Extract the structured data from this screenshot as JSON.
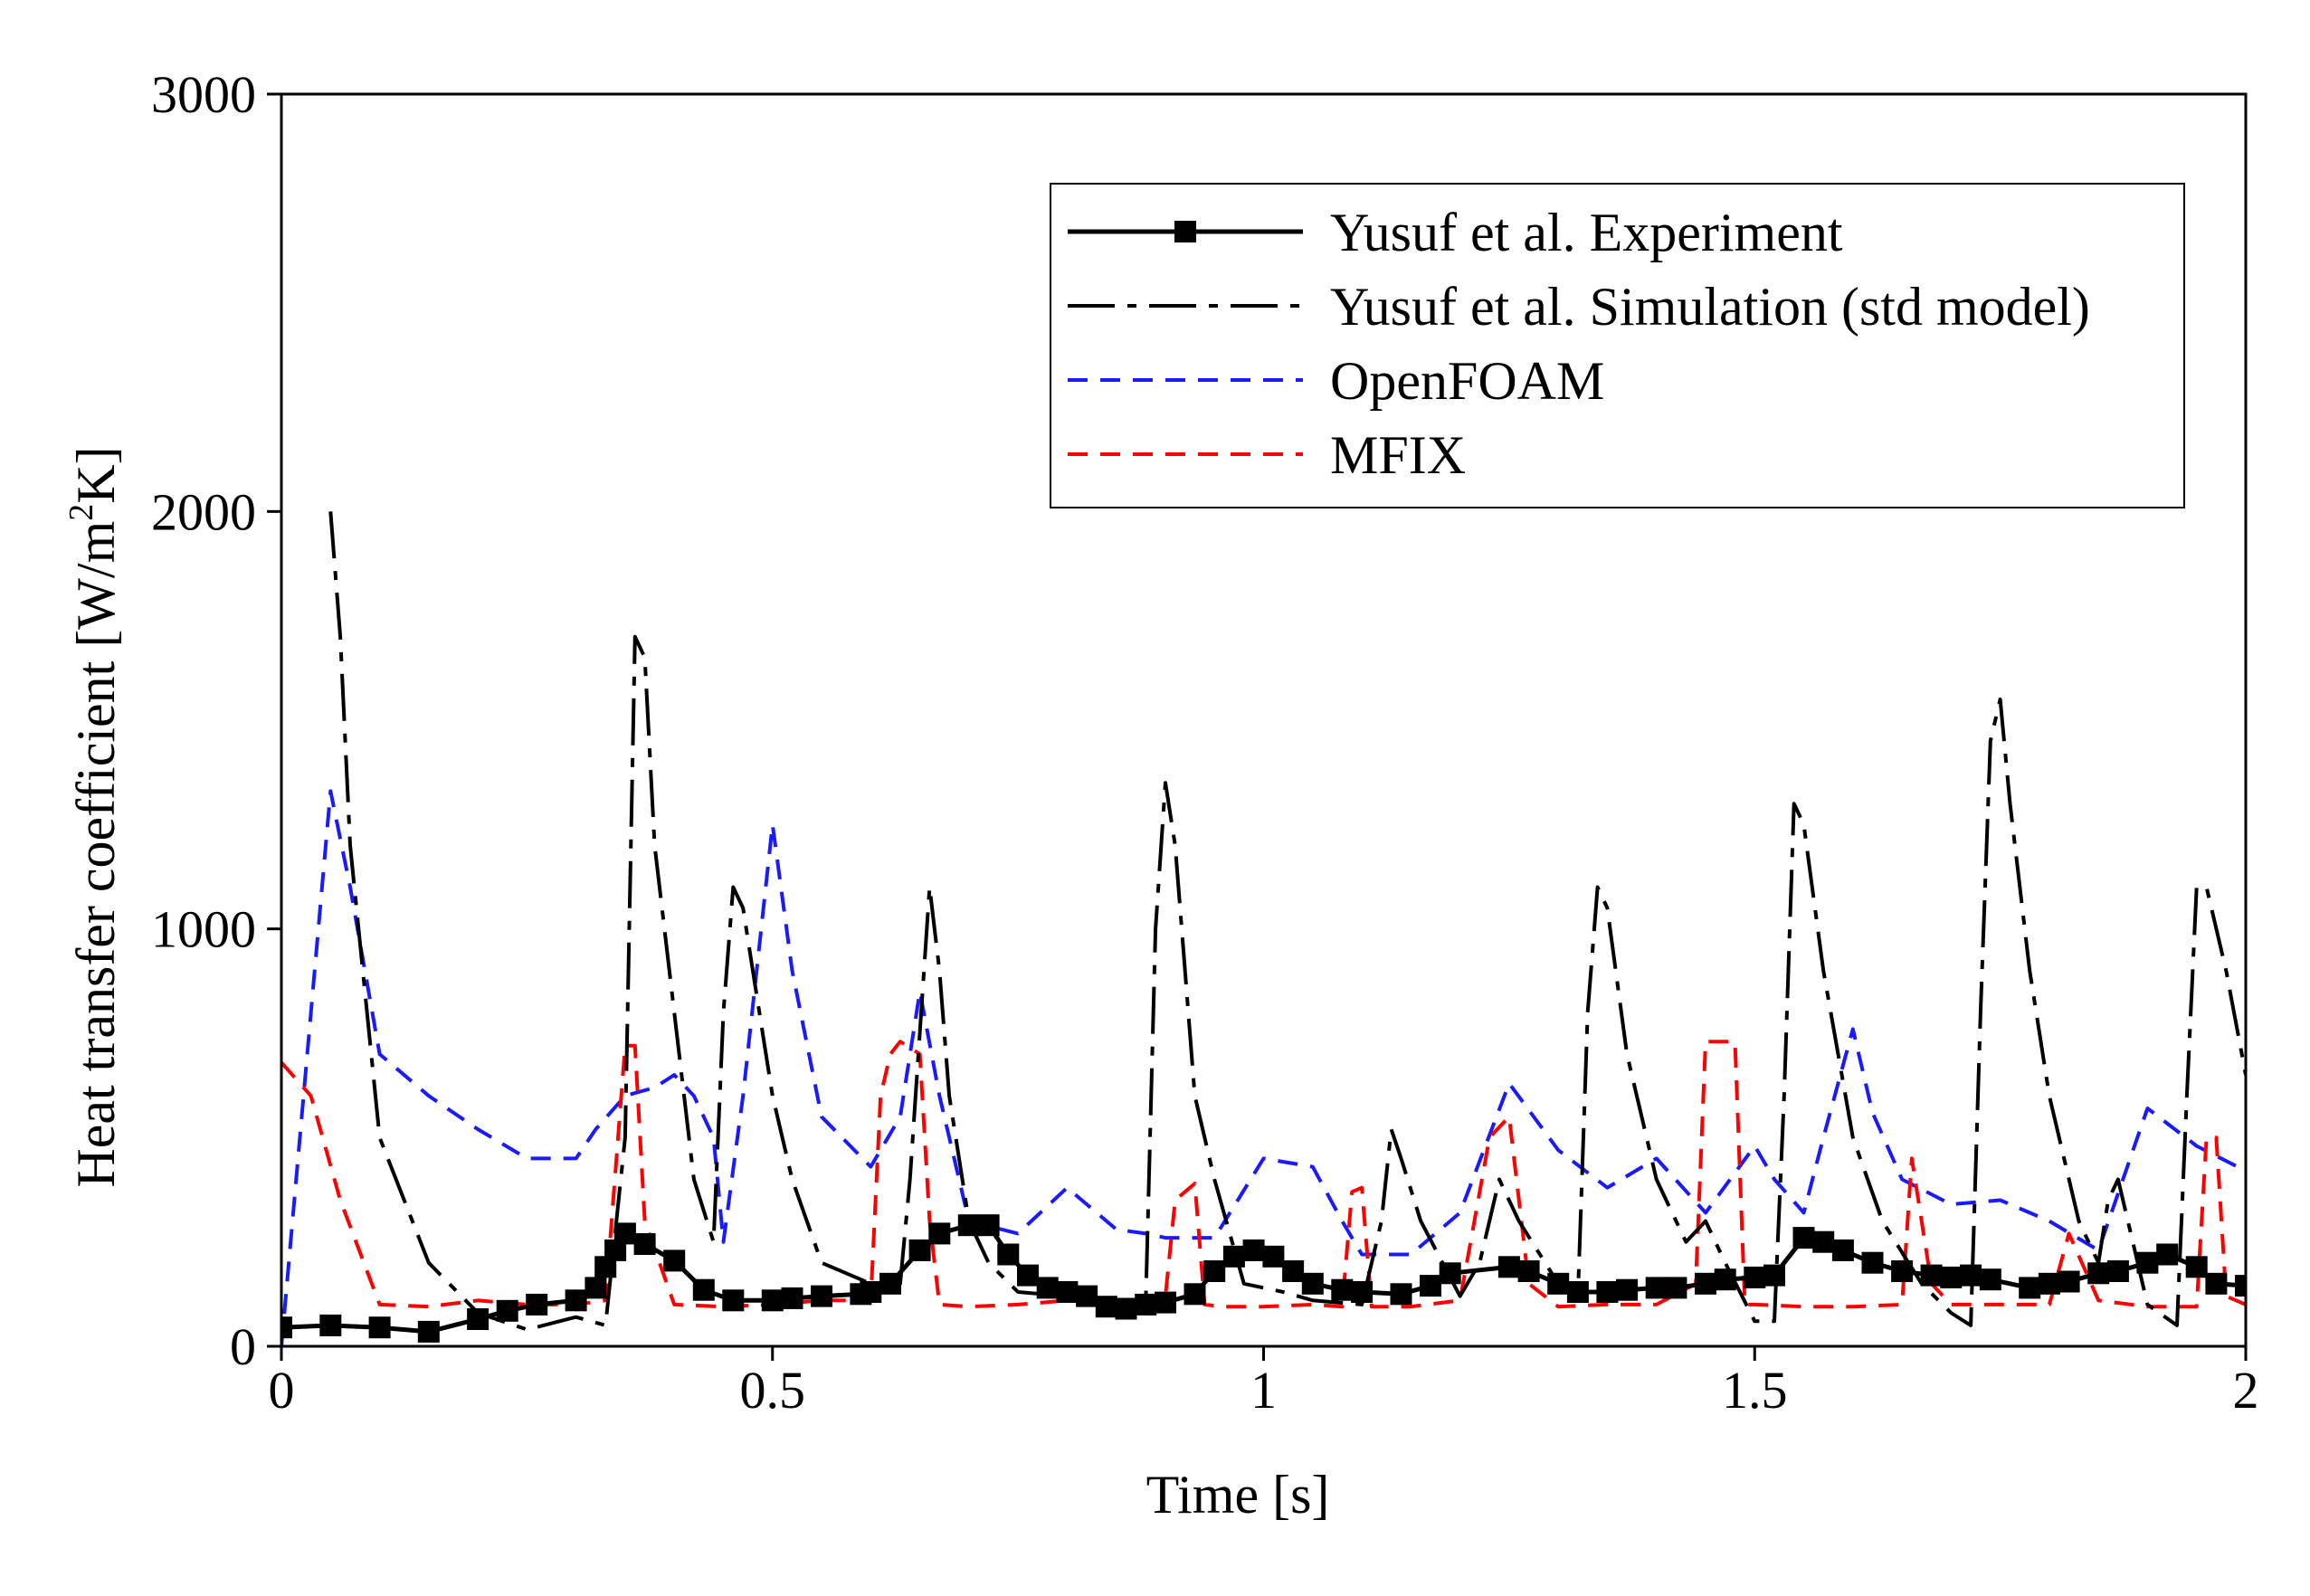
{
  "chart_data": {
    "type": "line",
    "title": "",
    "xlabel": "Time [s]",
    "ylabel": "Heat transfer coefficient [W/m²K]",
    "ylabel_parts": {
      "before": "Heat transfer coefficient [W/m",
      "sup": "2",
      "after": "K]"
    },
    "xlim": [
      0,
      2
    ],
    "ylim": [
      0,
      3000
    ],
    "xticks": [
      0,
      0.5,
      1,
      1.5,
      2
    ],
    "xtick_labels": [
      "0",
      "0.5",
      "1",
      "1.5",
      "2"
    ],
    "yticks": [
      0,
      1000,
      2000,
      3000
    ],
    "ytick_labels": [
      "0",
      "1000",
      "2000",
      "3000"
    ],
    "grid": false,
    "legend_position": "top-right",
    "series": [
      {
        "name": "Yusuf et al. Experiment",
        "color": "#000000",
        "style": "solid-square-markers",
        "x": [
          0,
          0.05,
          0.1,
          0.15,
          0.2,
          0.23,
          0.26,
          0.3,
          0.32,
          0.33,
          0.34,
          0.35,
          0.37,
          0.4,
          0.43,
          0.46,
          0.5,
          0.52,
          0.55,
          0.59,
          0.6,
          0.62,
          0.65,
          0.67,
          0.7,
          0.72,
          0.74,
          0.76,
          0.78,
          0.8,
          0.82,
          0.84,
          0.86,
          0.88,
          0.9,
          0.93,
          0.95,
          0.97,
          0.99,
          1.01,
          1.03,
          1.05,
          1.08,
          1.1,
          1.14,
          1.17,
          1.19,
          1.25,
          1.27,
          1.3,
          1.32,
          1.35,
          1.37,
          1.4,
          1.42,
          1.45,
          1.47,
          1.5,
          1.52,
          1.55,
          1.57,
          1.59,
          1.62,
          1.65,
          1.68,
          1.7,
          1.72,
          1.74,
          1.78,
          1.8,
          1.82,
          1.85,
          1.87,
          1.9,
          1.92,
          1.95,
          1.97,
          2.0
        ],
        "y": [
          45,
          50,
          45,
          35,
          65,
          85,
          100,
          110,
          140,
          190,
          230,
          270,
          245,
          205,
          135,
          110,
          110,
          115,
          120,
          125,
          130,
          150,
          230,
          270,
          290,
          290,
          220,
          170,
          140,
          130,
          120,
          95,
          90,
          100,
          105,
          125,
          180,
          215,
          230,
          215,
          180,
          150,
          135,
          130,
          125,
          145,
          175,
          190,
          180,
          150,
          130,
          130,
          135,
          140,
          140,
          150,
          160,
          165,
          170,
          260,
          250,
          230,
          200,
          180,
          170,
          165,
          170,
          160,
          140,
          150,
          155,
          175,
          180,
          200,
          220,
          190,
          150,
          145
        ]
      },
      {
        "name": "Yusuf et al. Simulation (std model)",
        "color": "#000000",
        "style": "long-dash",
        "x": [
          0.05,
          0.06,
          0.07,
          0.1,
          0.15,
          0.2,
          0.25,
          0.3,
          0.33,
          0.35,
          0.36,
          0.37,
          0.38,
          0.4,
          0.42,
          0.44,
          0.45,
          0.46,
          0.47,
          0.48,
          0.5,
          0.52,
          0.55,
          0.6,
          0.63,
          0.64,
          0.66,
          0.67,
          0.68,
          0.7,
          0.72,
          0.75,
          0.8,
          0.85,
          0.88,
          0.89,
          0.9,
          0.91,
          0.92,
          0.93,
          0.95,
          0.98,
          1.02,
          1.05,
          1.1,
          1.12,
          1.13,
          1.14,
          1.16,
          1.2,
          1.22,
          1.24,
          1.26,
          1.3,
          1.32,
          1.33,
          1.34,
          1.35,
          1.37,
          1.4,
          1.43,
          1.45,
          1.47,
          1.5,
          1.52,
          1.53,
          1.54,
          1.55,
          1.57,
          1.6,
          1.63,
          1.67,
          1.7,
          1.72,
          1.73,
          1.74,
          1.75,
          1.76,
          1.78,
          1.8,
          1.83,
          1.85,
          1.86,
          1.87,
          1.9,
          1.93,
          1.94,
          1.95,
          1.96,
          1.98,
          2.0
        ],
        "y": [
          2000,
          1700,
          1200,
          500,
          200,
          80,
          40,
          70,
          50,
          500,
          1700,
          1650,
          1200,
          800,
          400,
          250,
          800,
          1100,
          1050,
          900,
          600,
          400,
          200,
          150,
          150,
          400,
          1100,
          900,
          600,
          300,
          200,
          130,
          120,
          100,
          100,
          1000,
          1350,
          1200,
          900,
          600,
          400,
          150,
          130,
          110,
          100,
          300,
          520,
          450,
          300,
          120,
          200,
          400,
          300,
          150,
          120,
          800,
          1100,
          1050,
          700,
          400,
          250,
          300,
          200,
          60,
          60,
          600,
          1300,
          1250,
          900,
          500,
          300,
          150,
          80,
          50,
          800,
          1450,
          1550,
          1300,
          900,
          600,
          300,
          200,
          350,
          400,
          100,
          50,
          600,
          1100,
          1100,
          900,
          650
        ]
      },
      {
        "name": "OpenFOAM",
        "color": "#1a1aff",
        "style": "dash",
        "x": [
          0,
          0.05,
          0.07,
          0.1,
          0.15,
          0.2,
          0.25,
          0.3,
          0.32,
          0.35,
          0.38,
          0.4,
          0.42,
          0.44,
          0.45,
          0.47,
          0.5,
          0.52,
          0.55,
          0.6,
          0.63,
          0.65,
          0.67,
          0.7,
          0.75,
          0.8,
          0.85,
          0.88,
          0.9,
          0.95,
          1.0,
          1.05,
          1.08,
          1.1,
          1.15,
          1.2,
          1.25,
          1.3,
          1.35,
          1.4,
          1.45,
          1.5,
          1.52,
          1.55,
          1.57,
          1.6,
          1.62,
          1.65,
          1.7,
          1.75,
          1.8,
          1.85,
          1.9,
          1.95,
          2.0
        ],
        "y": [
          0,
          1330,
          1100,
          700,
          600,
          520,
          450,
          450,
          520,
          600,
          620,
          650,
          600,
          500,
          250,
          600,
          1250,
          900,
          550,
          430,
          550,
          850,
          600,
          300,
          270,
          380,
          280,
          270,
          260,
          260,
          450,
          430,
          300,
          220,
          220,
          320,
          630,
          470,
          380,
          450,
          320,
          480,
          400,
          320,
          500,
          760,
          560,
          400,
          340,
          350,
          300,
          230,
          570,
          480,
          420
        ]
      },
      {
        "name": "MFIX",
        "color": "#ff0000",
        "style": "dash",
        "x": [
          0,
          0.03,
          0.06,
          0.1,
          0.15,
          0.2,
          0.25,
          0.3,
          0.33,
          0.35,
          0.36,
          0.37,
          0.4,
          0.45,
          0.5,
          0.55,
          0.6,
          0.61,
          0.62,
          0.63,
          0.65,
          0.66,
          0.67,
          0.7,
          0.75,
          0.8,
          0.85,
          0.9,
          0.91,
          0.93,
          0.94,
          0.96,
          1.0,
          1.05,
          1.08,
          1.09,
          1.1,
          1.11,
          1.15,
          1.2,
          1.23,
          1.25,
          1.27,
          1.3,
          1.35,
          1.4,
          1.44,
          1.45,
          1.46,
          1.48,
          1.49,
          1.5,
          1.55,
          1.6,
          1.65,
          1.66,
          1.68,
          1.7,
          1.75,
          1.8,
          1.82,
          1.85,
          1.9,
          1.95,
          1.96,
          1.97,
          1.98,
          2.0
        ],
        "y": [
          680,
          600,
          350,
          100,
          95,
          110,
          100,
          100,
          110,
          720,
          720,
          300,
          100,
          95,
          100,
          110,
          110,
          600,
          700,
          730,
          700,
          300,
          100,
          95,
          100,
          110,
          110,
          120,
          350,
          390,
          100,
          95,
          95,
          100,
          95,
          370,
          380,
          95,
          95,
          110,
          500,
          550,
          150,
          95,
          100,
          100,
          150,
          730,
          730,
          730,
          100,
          100,
          95,
          95,
          100,
          450,
          150,
          100,
          100,
          100,
          270,
          110,
          95,
          95,
          500,
          500,
          120,
          100
        ]
      }
    ]
  }
}
